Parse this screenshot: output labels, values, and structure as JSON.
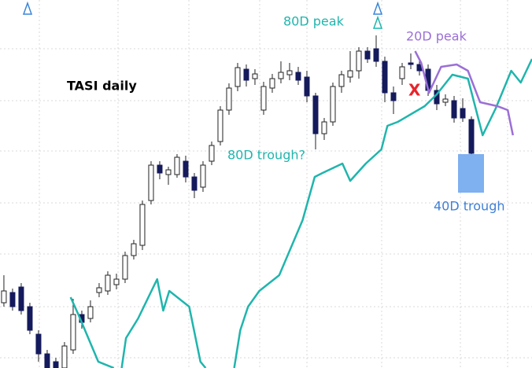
{
  "chart_data": {
    "type": "candlestick",
    "title": "TASI daily",
    "annotations": [
      "80D peak",
      "80D trough?",
      "20D peak",
      "40D trough",
      "X"
    ],
    "xlim": [
      -0.45,
      61
    ],
    "ylim": [
      0,
      468
    ],
    "up_color": "#ffffff",
    "down_color": "#141a5c",
    "candles": [
      {
        "open": 83,
        "high": 118,
        "low": 78,
        "close": 98
      },
      {
        "open": 96,
        "high": 101,
        "low": 73,
        "close": 78
      },
      {
        "open": 103,
        "high": 108,
        "low": 68,
        "close": 73
      },
      {
        "open": 78,
        "high": 83,
        "low": 43,
        "close": 48
      },
      {
        "open": 43,
        "high": 48,
        "low": 8,
        "close": 18
      },
      {
        "open": 18,
        "high": 23,
        "low": 0,
        "close": 0
      },
      {
        "open": 8,
        "high": 13,
        "low": 0,
        "close": 0
      },
      {
        "open": 0,
        "high": 33,
        "low": 0,
        "close": 28
      },
      {
        "open": 23,
        "high": 88,
        "low": 18,
        "close": 68
      },
      {
        "open": 68,
        "high": 73,
        "low": 50,
        "close": 58
      },
      {
        "open": 63,
        "high": 86,
        "low": 58,
        "close": 78
      },
      {
        "open": 96,
        "high": 108,
        "low": 90,
        "close": 102
      },
      {
        "open": 98,
        "high": 123,
        "low": 93,
        "close": 118
      },
      {
        "open": 106,
        "high": 120,
        "low": 100,
        "close": 113
      },
      {
        "open": 113,
        "high": 148,
        "low": 108,
        "close": 143
      },
      {
        "open": 143,
        "high": 163,
        "low": 138,
        "close": 158
      },
      {
        "open": 156,
        "high": 213,
        "low": 150,
        "close": 208
      },
      {
        "open": 213,
        "high": 263,
        "low": 208,
        "close": 258
      },
      {
        "open": 258,
        "high": 263,
        "low": 240,
        "close": 248
      },
      {
        "open": 246,
        "high": 256,
        "low": 233,
        "close": 252
      },
      {
        "open": 246,
        "high": 272,
        "low": 242,
        "close": 268
      },
      {
        "open": 263,
        "high": 270,
        "low": 236,
        "close": 243
      },
      {
        "open": 243,
        "high": 248,
        "low": 216,
        "close": 226
      },
      {
        "open": 230,
        "high": 263,
        "low": 224,
        "close": 258
      },
      {
        "open": 263,
        "high": 288,
        "low": 258,
        "close": 283
      },
      {
        "open": 288,
        "high": 333,
        "low": 283,
        "close": 328
      },
      {
        "open": 328,
        "high": 362,
        "low": 322,
        "close": 356
      },
      {
        "open": 358,
        "high": 388,
        "low": 352,
        "close": 382
      },
      {
        "open": 380,
        "high": 386,
        "low": 358,
        "close": 366
      },
      {
        "open": 368,
        "high": 380,
        "low": 360,
        "close": 374
      },
      {
        "open": 328,
        "high": 364,
        "low": 322,
        "close": 358
      },
      {
        "open": 356,
        "high": 374,
        "low": 350,
        "close": 368
      },
      {
        "open": 368,
        "high": 390,
        "low": 362,
        "close": 376
      },
      {
        "open": 373,
        "high": 388,
        "low": 366,
        "close": 378
      },
      {
        "open": 376,
        "high": 383,
        "low": 360,
        "close": 366
      },
      {
        "open": 370,
        "high": 378,
        "low": 338,
        "close": 346
      },
      {
        "open": 346,
        "high": 350,
        "low": 278,
        "close": 298
      },
      {
        "open": 298,
        "high": 318,
        "low": 290,
        "close": 313
      },
      {
        "open": 313,
        "high": 363,
        "low": 308,
        "close": 358
      },
      {
        "open": 358,
        "high": 378,
        "low": 350,
        "close": 373
      },
      {
        "open": 370,
        "high": 403,
        "low": 363,
        "close": 378
      },
      {
        "open": 378,
        "high": 408,
        "low": 368,
        "close": 403
      },
      {
        "open": 403,
        "high": 408,
        "low": 388,
        "close": 393
      },
      {
        "open": 406,
        "high": 423,
        "low": 383,
        "close": 390
      },
      {
        "open": 390,
        "high": 396,
        "low": 338,
        "close": 350
      },
      {
        "open": 350,
        "high": 358,
        "low": 323,
        "close": 340
      },
      {
        "open": 368,
        "high": 388,
        "low": 360,
        "close": 383
      },
      {
        "open": 388,
        "high": 400,
        "low": 380,
        "close": 386
      },
      {
        "open": 386,
        "high": 392,
        "low": 372,
        "close": 378
      },
      {
        "open": 380,
        "high": 386,
        "low": 346,
        "close": 353
      },
      {
        "open": 353,
        "high": 360,
        "low": 328,
        "close": 336
      },
      {
        "open": 338,
        "high": 348,
        "low": 333,
        "close": 342
      },
      {
        "open": 340,
        "high": 346,
        "low": 312,
        "close": 318
      },
      {
        "open": 330,
        "high": 343,
        "low": 313,
        "close": 318
      },
      {
        "open": 316,
        "high": 320,
        "low": 272,
        "close": 273
      }
    ],
    "series": [
      {
        "color": "#1fb5ad",
        "x": [
          7.7,
          8.6,
          10.9,
          12.7,
          null,
          13.6,
          14.1,
          15.5,
          17.7,
          18.4,
          19.1,
          21.4,
          22.7,
          23.3,
          null,
          26.6,
          27.3,
          28.2,
          29.5,
          31.8,
          34.5,
          35.9,
          36.8,
          39.1,
          40.0,
          41.8,
          43.6,
          44.3,
          45.5,
          48.6,
          50.0,
          51.8,
          53.6,
          55.3,
          56.8,
          58.6,
          59.7,
          61
        ],
        "values": [
          90,
          68,
          8,
          0,
          null,
          0,
          38,
          63,
          113,
          73,
          98,
          78,
          8,
          0,
          null,
          0,
          48,
          78,
          98,
          118,
          188,
          243,
          248,
          260,
          238,
          260,
          278,
          308,
          313,
          333,
          348,
          373,
          368,
          296,
          330,
          378,
          363,
          393
        ]
      },
      {
        "color": "#9b6fd6",
        "x": [
          47.5,
          48.2,
          49.1,
          50.5,
          52.3,
          53.6,
          55,
          57,
          58.2,
          58.8
        ],
        "values": [
          403,
          388,
          350,
          383,
          386,
          378,
          338,
          333,
          328,
          296
        ]
      }
    ]
  }
}
